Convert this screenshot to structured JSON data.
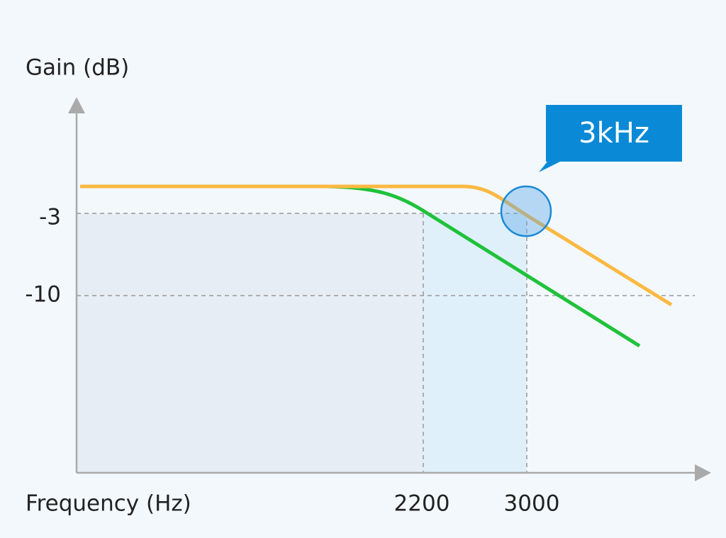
{
  "y_axis_label": "Gain (dB)",
  "x_axis_label": "Frequency (Hz)",
  "y_ticks": [
    -3,
    -10
  ],
  "x_ticks": [
    2200,
    3000
  ],
  "callout": "3kHz"
}
